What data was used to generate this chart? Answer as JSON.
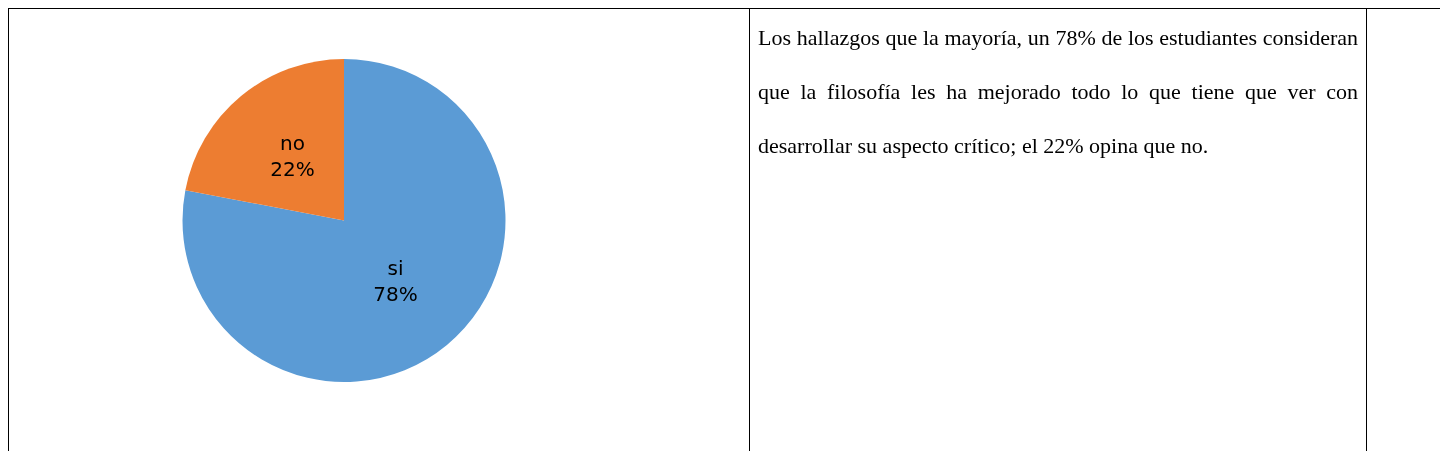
{
  "chart_data": {
    "type": "pie",
    "categories": [
      "si",
      "no"
    ],
    "values": [
      78,
      22
    ],
    "colors": [
      "#5b9bd5",
      "#ed7d31"
    ],
    "value_labels": [
      "78%",
      "22%"
    ],
    "annotations": [
      "Los hallazgos que la mayoría, un 78% de los estudiantes consideran que la filosofía les ha mejorado todo lo que tiene que ver con desarrollar su aspecto crítico; el 22% opina que no."
    ]
  }
}
